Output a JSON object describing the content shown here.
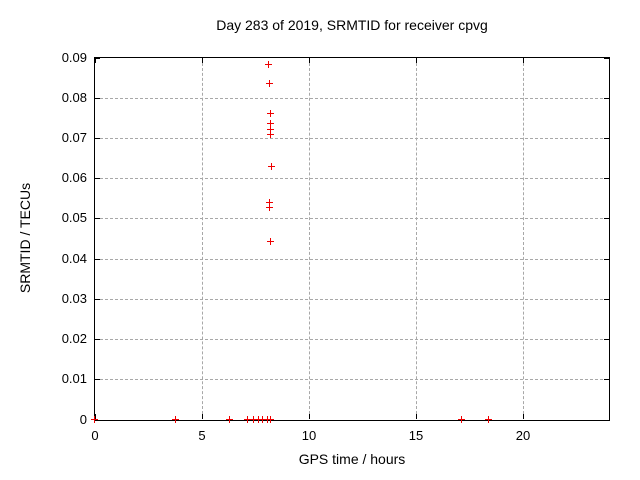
{
  "chart_data": {
    "type": "scatter",
    "title": "Day 283 of 2019, SRMTID for receiver cpvg",
    "xlabel": "GPS time / hours",
    "ylabel": "SRMTID / TECUs",
    "xlim": [
      0,
      24
    ],
    "ylim": [
      0,
      0.09
    ],
    "xticks": [
      0,
      5,
      10,
      15,
      20
    ],
    "xtick_labels": [
      "0",
      "5",
      "10",
      "15",
      "20"
    ],
    "yticks": [
      0,
      0.01,
      0.02,
      0.03,
      0.04,
      0.05,
      0.06,
      0.07,
      0.08,
      0.09
    ],
    "ytick_labels": [
      "0",
      "0.01",
      "0.02",
      "0.03",
      "0.04",
      "0.05",
      "0.06",
      "0.07",
      "0.08",
      "0.09"
    ],
    "grid": true,
    "legend_position": "none",
    "marker": "plus",
    "colors": {
      "marker": "#ee0000",
      "grid": "#a8a8a8",
      "axis": "#000000",
      "text": "#000000",
      "background": "#ffffff"
    },
    "series": [
      {
        "name": "SRMTID",
        "points": [
          [
            8.12,
            0.0883
          ],
          [
            8.14,
            0.0836
          ],
          [
            8.19,
            0.076
          ],
          [
            8.2,
            0.0737
          ],
          [
            8.2,
            0.0722
          ],
          [
            8.2,
            0.0709
          ],
          [
            8.24,
            0.0629
          ],
          [
            8.14,
            0.0539
          ],
          [
            8.14,
            0.0528
          ],
          [
            8.19,
            0.0442
          ],
          [
            0.0,
            0
          ],
          [
            3.8,
            0
          ],
          [
            6.29,
            0
          ],
          [
            7.16,
            0
          ],
          [
            7.43,
            0
          ],
          [
            7.65,
            0
          ],
          [
            7.85,
            0
          ],
          [
            8.05,
            0
          ],
          [
            8.23,
            0
          ],
          [
            17.14,
            0
          ],
          [
            18.38,
            0
          ]
        ]
      }
    ]
  }
}
